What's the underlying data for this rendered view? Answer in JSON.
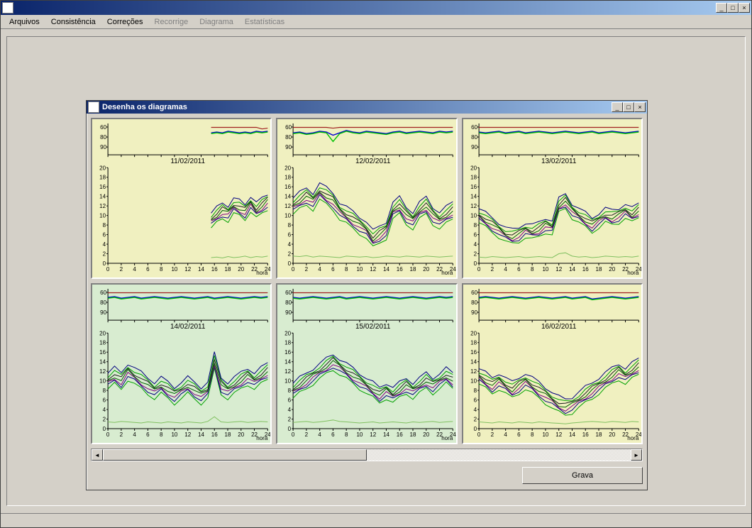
{
  "outer_window": {
    "title": ""
  },
  "menubar": {
    "items": [
      {
        "label": "Arquivos",
        "enabled": true
      },
      {
        "label": "Consistência",
        "enabled": true
      },
      {
        "label": "Correções",
        "enabled": true
      },
      {
        "label": "Recorrige",
        "enabled": false
      },
      {
        "label": "Diagrama",
        "enabled": false
      },
      {
        "label": "Estatísticas",
        "enabled": false
      }
    ]
  },
  "inner_window": {
    "title": "Desenha os diagramas"
  },
  "scrollbar": {
    "thumb_left_pct": 0,
    "thumb_width_pct": 50
  },
  "buttons": {
    "grava_label": "Grava"
  },
  "chart_common": {
    "x_axis_label": "hora",
    "x_ticks": [
      0,
      2,
      4,
      6,
      8,
      10,
      12,
      14,
      16,
      18,
      20,
      22,
      24
    ],
    "upper_y_ticks": [
      60,
      80,
      90
    ],
    "lower_y_ticks": [
      0,
      2,
      4,
      6,
      8,
      10,
      12,
      14,
      16,
      18,
      20
    ],
    "font_size_ticks": 8,
    "font_size_date": 10,
    "axis_color": "#000000",
    "upper_line_colors": {
      "line_a": "#0000d0",
      "line_b": "#00c000",
      "line_c": "#a02020"
    },
    "lower_line_palette": [
      "#00a000",
      "#000080",
      "#800080",
      "#006000",
      "#202020"
    ],
    "flat_line_color": "#80c060"
  },
  "panels": [
    {
      "date": "11/02/2011",
      "bg_variant": "yellow",
      "data_start_x": 15.5,
      "upper": {
        "series_a": [
          83,
          84,
          83,
          85,
          84,
          83,
          84,
          83,
          85,
          84,
          85
        ],
        "series_b": [
          82,
          83,
          82,
          84,
          83,
          82,
          83,
          82,
          84,
          83,
          84
        ],
        "baseline": [
          90,
          90,
          90,
          90,
          90,
          90,
          90,
          90,
          90,
          88,
          89
        ]
      },
      "lower": {
        "band_center": [
          9.0,
          10.0,
          11.0,
          10.5,
          12.0,
          11.5,
          10.8,
          12.5,
          11.0,
          12.0,
          13.0
        ],
        "band_width": 3.2,
        "flat": [
          1.2,
          1.3,
          1.1,
          1.4,
          1.2,
          1.3,
          1.5,
          1.2,
          1.4,
          1.3,
          1.5
        ]
      }
    },
    {
      "date": "12/02/2011",
      "bg_variant": "yellow",
      "data_start_x": 0,
      "upper": {
        "series_a": [
          83,
          84,
          82,
          83,
          85,
          84,
          80,
          83,
          86,
          84,
          83,
          85,
          84,
          83,
          82,
          84,
          85,
          83,
          84,
          85,
          84,
          83,
          85,
          84,
          85
        ],
        "series_b": [
          82,
          83,
          81,
          82,
          84,
          83,
          72,
          82,
          85,
          83,
          82,
          84,
          83,
          82,
          81,
          83,
          84,
          82,
          83,
          84,
          83,
          82,
          84,
          83,
          84
        ],
        "baseline": [
          90,
          90,
          90,
          90,
          90,
          90,
          89,
          90,
          90,
          90,
          90,
          90,
          90,
          90,
          90,
          90,
          90,
          90,
          90,
          90,
          90,
          90,
          90,
          90,
          90
        ]
      },
      "lower": {
        "band_center": [
          12,
          13,
          14,
          13,
          15,
          14,
          13,
          11,
          10,
          9,
          8,
          7,
          5,
          6,
          7,
          11,
          12,
          10,
          9,
          11,
          12,
          10,
          9,
          10,
          11
        ],
        "band_width": 3.5,
        "flat": [
          1.5,
          1.4,
          1.6,
          1.3,
          1.5,
          1.4,
          1.3,
          1.2,
          1.5,
          1.4,
          1.3,
          1.4,
          1.2,
          1.3,
          1.5,
          1.4,
          1.3,
          1.5,
          1.4,
          1.3,
          1.5,
          1.4,
          1.3,
          1.4,
          1.5
        ]
      }
    },
    {
      "date": "13/02/2011",
      "bg_variant": "yellow",
      "data_start_x": 0,
      "upper": {
        "series_a": [
          84,
          83,
          84,
          85,
          83,
          84,
          85,
          83,
          84,
          85,
          84,
          83,
          84,
          85,
          84,
          83,
          84,
          85,
          83,
          84,
          85,
          84,
          83,
          84,
          85
        ],
        "series_b": [
          83,
          82,
          83,
          84,
          82,
          83,
          84,
          82,
          83,
          84,
          83,
          82,
          83,
          84,
          83,
          82,
          83,
          84,
          82,
          83,
          84,
          83,
          82,
          83,
          84
        ],
        "baseline": [
          90,
          90,
          90,
          90,
          90,
          90,
          90,
          90,
          90,
          90,
          90,
          90,
          90,
          90,
          90,
          90,
          90,
          90,
          90,
          90,
          90,
          90,
          90,
          90,
          90
        ]
      },
      "lower": {
        "band_center": [
          10,
          9,
          8,
          7,
          6,
          5.5,
          6,
          7,
          6.5,
          7,
          8,
          7.5,
          12,
          13,
          11,
          10,
          9,
          8,
          9,
          10,
          9.5,
          10,
          11,
          10,
          11
        ],
        "band_width": 3.0,
        "flat": [
          1.3,
          1.2,
          1.4,
          1.3,
          1.2,
          1.3,
          1.4,
          1.2,
          1.3,
          1.4,
          1.3,
          1.2,
          2.0,
          2.2,
          1.5,
          1.3,
          1.4,
          1.2,
          1.3,
          1.5,
          1.4,
          1.3,
          1.4,
          1.3,
          1.5
        ]
      }
    },
    {
      "date": "14/02/2011",
      "bg_variant": "green",
      "data_start_x": 0,
      "upper": {
        "series_a": [
          84,
          85,
          83,
          84,
          85,
          83,
          84,
          85,
          84,
          83,
          84,
          85,
          84,
          83,
          84,
          85,
          83,
          84,
          85,
          84,
          83,
          84,
          85,
          84,
          85
        ],
        "series_b": [
          83,
          84,
          82,
          83,
          84,
          82,
          83,
          84,
          83,
          82,
          83,
          84,
          83,
          82,
          83,
          84,
          82,
          83,
          84,
          83,
          82,
          83,
          84,
          83,
          84
        ],
        "baseline": [
          90,
          90,
          90,
          90,
          90,
          90,
          90,
          90,
          90,
          90,
          90,
          90,
          90,
          90,
          90,
          90,
          90,
          90,
          90,
          90,
          90,
          90,
          90,
          90,
          90
        ]
      },
      "lower": {
        "band_center": [
          10,
          11,
          10,
          12,
          11,
          10,
          9,
          8,
          9,
          8,
          7,
          8,
          9,
          8,
          7,
          8,
          14,
          9,
          8,
          9,
          10,
          11,
          10,
          11,
          12
        ],
        "band_width": 3.4,
        "flat": [
          1.4,
          1.3,
          1.5,
          1.4,
          1.3,
          1.2,
          1.4,
          1.3,
          1.2,
          1.4,
          1.3,
          1.2,
          1.4,
          1.3,
          1.2,
          1.5,
          2.5,
          1.4,
          1.3,
          1.4,
          1.5,
          1.3,
          1.4,
          1.5,
          1.4
        ]
      }
    },
    {
      "date": "15/02/2011",
      "bg_variant": "green",
      "data_start_x": 0,
      "upper": {
        "series_a": [
          84,
          83,
          84,
          85,
          84,
          83,
          84,
          85,
          83,
          84,
          85,
          84,
          83,
          84,
          85,
          84,
          83,
          84,
          85,
          84,
          83,
          84,
          85,
          84,
          85
        ],
        "series_b": [
          83,
          82,
          83,
          84,
          83,
          82,
          83,
          84,
          82,
          83,
          84,
          83,
          82,
          83,
          84,
          83,
          82,
          83,
          84,
          83,
          82,
          83,
          84,
          83,
          84
        ],
        "baseline": [
          90,
          90,
          90,
          90,
          90,
          90,
          90,
          90,
          90,
          90,
          90,
          90,
          90,
          90,
          90,
          90,
          90,
          90,
          90,
          90,
          90,
          90,
          90,
          90,
          90
        ]
      },
      "lower": {
        "band_center": [
          8,
          9,
          10,
          11,
          12,
          13,
          14,
          13,
          12,
          11,
          10,
          9,
          8,
          7,
          8,
          7,
          8,
          9,
          8,
          9,
          10,
          9,
          10,
          11,
          10
        ],
        "band_width": 3.2,
        "flat": [
          1.3,
          1.4,
          1.5,
          1.3,
          1.4,
          1.6,
          1.8,
          1.5,
          1.4,
          1.3,
          1.2,
          1.3,
          1.4,
          1.2,
          1.3,
          1.4,
          1.3,
          1.2,
          1.4,
          1.3,
          1.4,
          1.5,
          1.3,
          1.4,
          1.5
        ]
      }
    },
    {
      "date": "16/02/2011",
      "bg_variant": "yellow",
      "data_start_x": 0,
      "upper": {
        "series_a": [
          84,
          85,
          84,
          83,
          84,
          85,
          84,
          83,
          84,
          85,
          84,
          83,
          84,
          85,
          83,
          84,
          85,
          82,
          83,
          84,
          85,
          84,
          83,
          84,
          85
        ],
        "series_b": [
          83,
          84,
          83,
          82,
          83,
          84,
          83,
          82,
          83,
          84,
          83,
          82,
          83,
          84,
          82,
          83,
          84,
          81,
          82,
          83,
          84,
          83,
          82,
          83,
          84
        ],
        "baseline": [
          90,
          90,
          90,
          90,
          90,
          90,
          90,
          90,
          90,
          90,
          90,
          90,
          90,
          90,
          90,
          90,
          90,
          90,
          90,
          90,
          90,
          90,
          90,
          90,
          90
        ]
      },
      "lower": {
        "band_center": [
          11,
          10,
          9,
          10,
          9,
          8,
          9,
          10,
          9,
          8,
          7,
          6,
          5,
          4.5,
          5,
          6,
          7,
          8,
          9,
          10,
          11,
          12,
          11,
          12,
          13
        ],
        "band_width": 3.3,
        "flat": [
          1.4,
          1.3,
          1.2,
          1.4,
          1.3,
          1.2,
          1.4,
          1.3,
          1.2,
          1.4,
          1.3,
          1.2,
          1.1,
          1.0,
          1.2,
          1.3,
          1.4,
          1.5,
          1.4,
          1.3,
          1.5,
          1.4,
          1.3,
          1.5,
          1.4
        ]
      }
    }
  ]
}
